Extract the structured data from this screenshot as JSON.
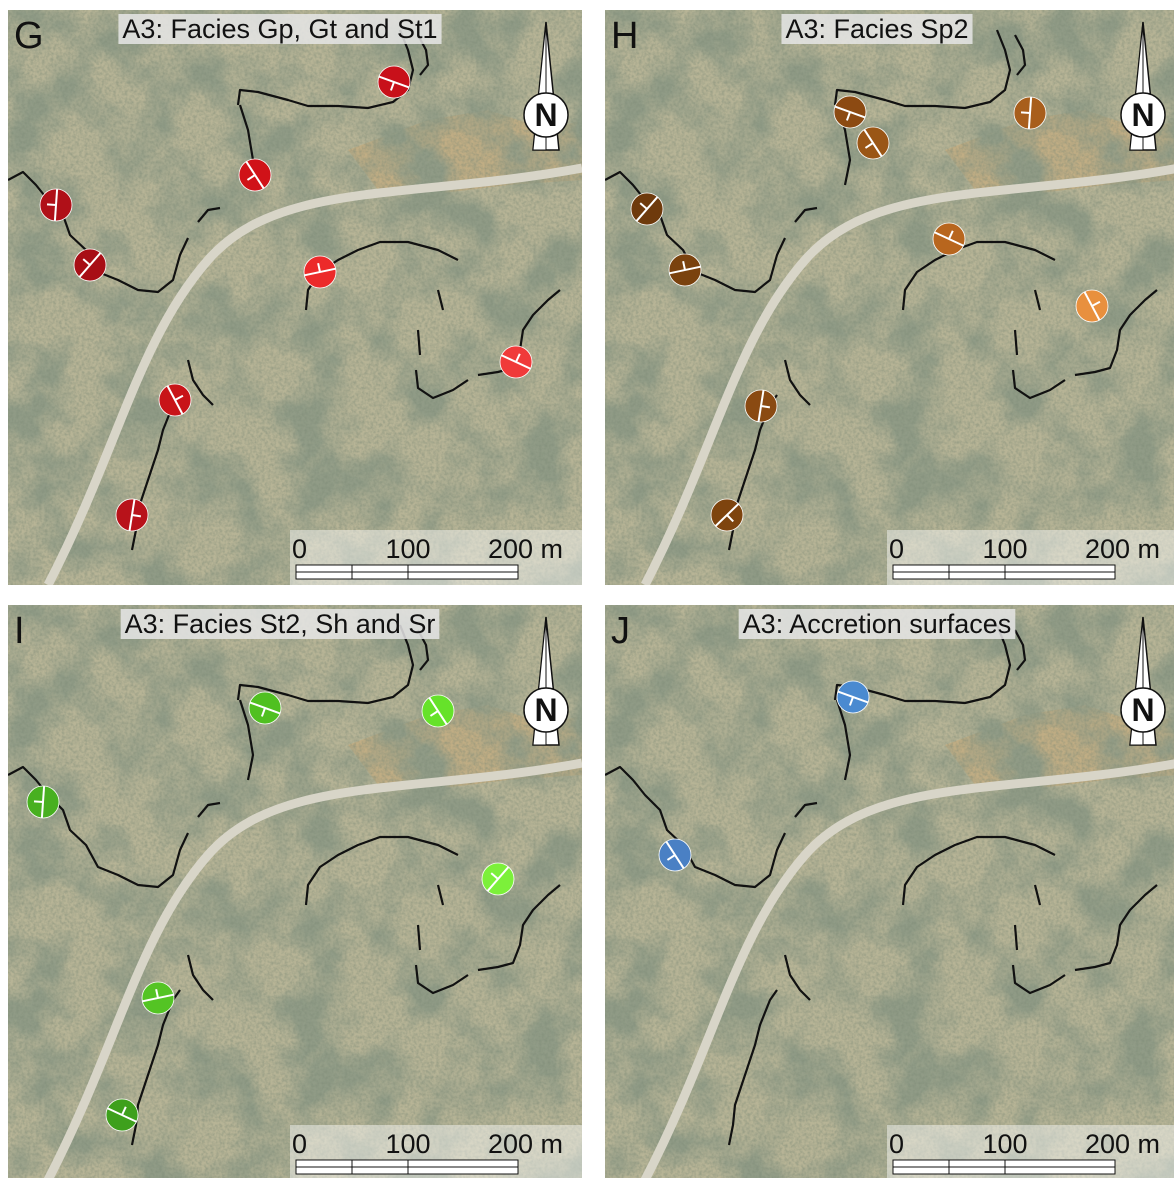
{
  "panels": [
    {
      "letter": "G",
      "title": "A3: Facies Gp, Gt and St1",
      "scale": [
        "0",
        "100",
        "200 m"
      ],
      "north": "N"
    },
    {
      "letter": "H",
      "title": "A3: Facies Sp2",
      "scale": [
        "0",
        "100",
        "200 m"
      ],
      "north": "N"
    },
    {
      "letter": "I",
      "title": "A3: Facies St2, Sh and Sr",
      "scale": [
        "0",
        "100",
        "200 m"
      ],
      "north": "N"
    },
    {
      "letter": "J",
      "title": "A3: Accretion surfaces",
      "scale": [
        "0",
        "100",
        "200 m"
      ],
      "north": "N"
    }
  ]
}
